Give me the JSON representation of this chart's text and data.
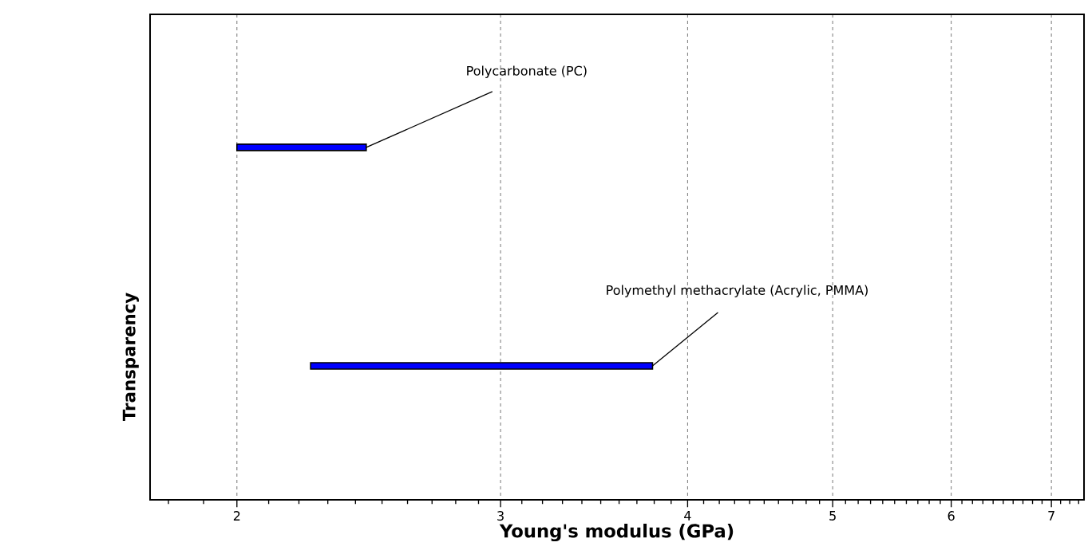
{
  "chart_data": {
    "type": "bar",
    "orientation": "horizontal",
    "log": "x",
    "xlabel": "Young's modulus (GPa)",
    "ylabel": "Transparency",
    "categories": [
      null,
      null
    ],
    "base": [
      2,
      2.24
    ],
    "values": [
      0.44,
      1.55
    ],
    "color": "#0000ff",
    "xlim": [
      1.75,
      7.36
    ],
    "xticks": [
      2,
      3,
      4,
      5,
      6,
      7
    ],
    "grid": "x",
    "annotations": [
      "Polycarbonate (PC)",
      "Polymethyl methacrylate (Acrylic, PMMA)"
    ]
  }
}
